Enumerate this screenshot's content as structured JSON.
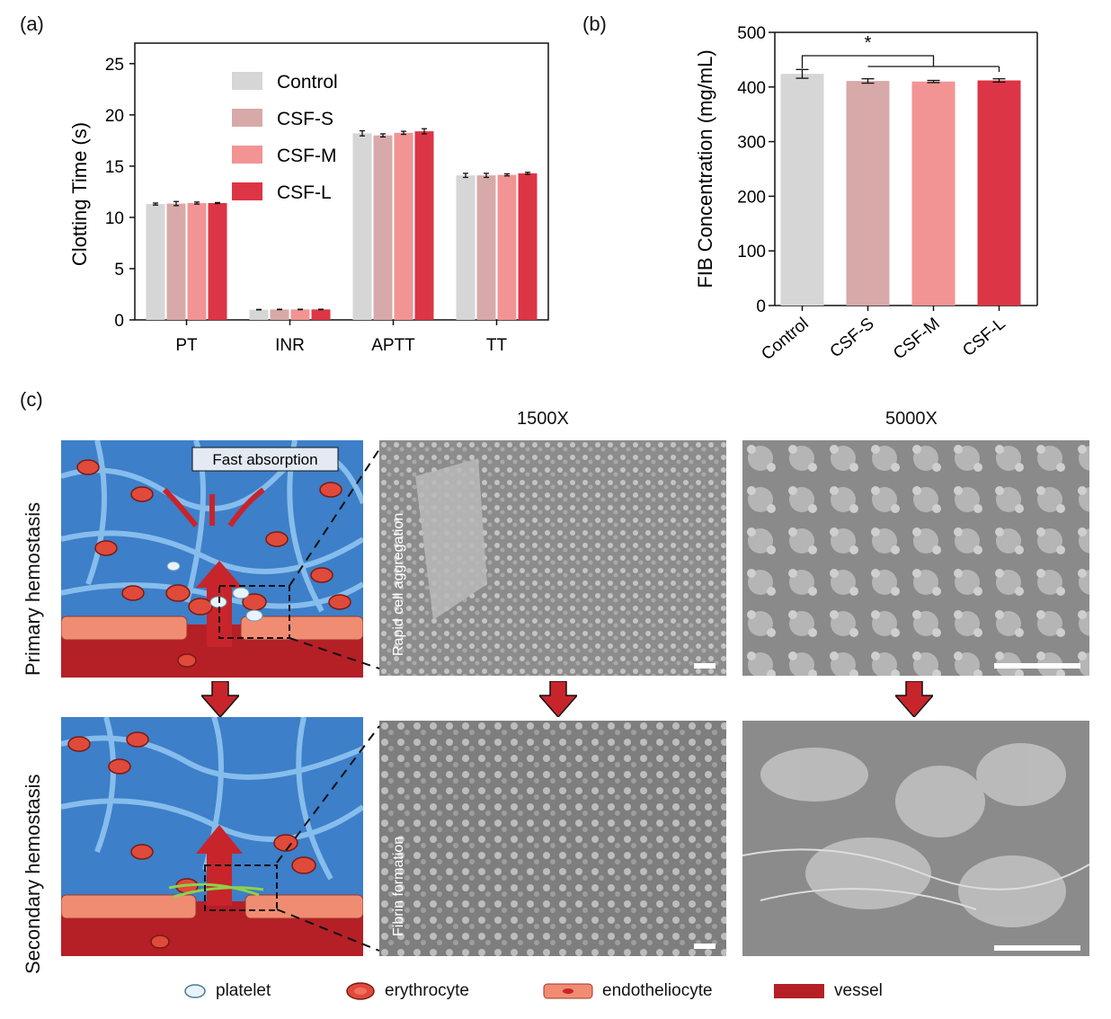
{
  "panels": {
    "a_label": "(a)",
    "b_label": "(b)",
    "c_label": "(c)"
  },
  "colors": {
    "control": "#d6d6d6",
    "csf_s": "#d8a9a9",
    "csf_m": "#f29494",
    "csf_l": "#dc3545"
  },
  "chart_data": [
    {
      "type": "bar",
      "ylabel": "Clotting Time  (s)",
      "ylim": [
        0,
        27
      ],
      "yticks": [
        0,
        5,
        10,
        15,
        20,
        25
      ],
      "categories": [
        "PT",
        "INR",
        "APTT",
        "TT"
      ],
      "legend_position": "top-center",
      "series": [
        {
          "name": "Control",
          "values": [
            11.3,
            1.0,
            18.2,
            14.1
          ],
          "errors": [
            0.1,
            0.02,
            0.25,
            0.2
          ]
        },
        {
          "name": "CSF-S",
          "values": [
            11.35,
            1.02,
            18.0,
            14.1
          ],
          "errors": [
            0.2,
            0.02,
            0.15,
            0.2
          ]
        },
        {
          "name": "CSF-M",
          "values": [
            11.4,
            1.02,
            18.25,
            14.15
          ],
          "errors": [
            0.1,
            0.02,
            0.15,
            0.1
          ]
        },
        {
          "name": "CSF-L",
          "values": [
            11.4,
            1.02,
            18.4,
            14.3
          ],
          "errors": [
            0.05,
            0.02,
            0.25,
            0.1
          ]
        }
      ]
    },
    {
      "type": "bar",
      "ylabel": "FIB Concentration (mg/mL)",
      "ylim": [
        0,
        500
      ],
      "yticks": [
        0,
        100,
        200,
        300,
        400,
        500
      ],
      "categories": [
        "Control",
        "CSF-S",
        "CSF-M",
        "CSF-L"
      ],
      "values": [
        424,
        411,
        410,
        412
      ],
      "errors": [
        8,
        4,
        2,
        3
      ],
      "significance": "*"
    }
  ],
  "section_c": {
    "mag_low": "1500X",
    "mag_high": "5000X",
    "row1_label": "Primary hemostasis",
    "row2_label": "Secondary hemostasis",
    "fast_absorption": "Fast absorption",
    "caption_row1": "Rapid cell aggregation",
    "caption_row2": "Fibrin formation",
    "legend": [
      {
        "icon": "platelet-icon",
        "label": "platelet"
      },
      {
        "icon": "erythrocyte-icon",
        "label": "erythrocyte"
      },
      {
        "icon": "endotheliocyte-icon",
        "label": "endotheliocyte"
      },
      {
        "icon": "vessel-icon",
        "label": "vessel"
      }
    ]
  }
}
